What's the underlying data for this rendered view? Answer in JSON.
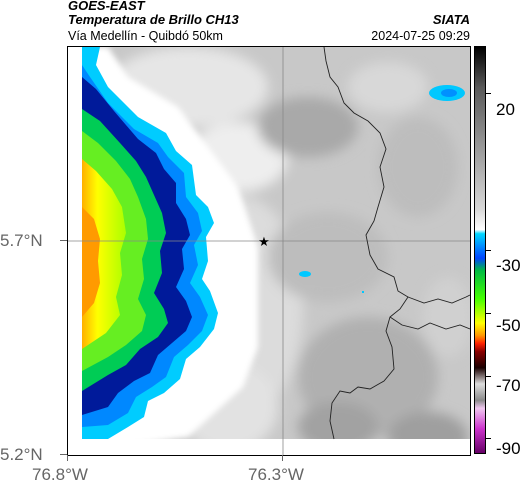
{
  "header": {
    "satellite": "GOES-EAST",
    "product": "Temperatura de Brillo CH13",
    "route": "Vía Medellín - Quibdó 50km",
    "agency": "SIATA",
    "datetime": "2024-07-25 09:29"
  },
  "axes": {
    "lat_labels": [
      "5.7°N",
      "5.2°N"
    ],
    "lon_labels": [
      "76.8°W",
      "76.3°W"
    ]
  },
  "colorbar": {
    "tick_labels": [
      "20",
      "-30",
      "-50",
      "-70",
      "-90"
    ],
    "tick_values": [
      20,
      -30,
      -50,
      -70,
      -90
    ],
    "range": [
      -95,
      35
    ]
  },
  "marker": {
    "icon": "star-icon"
  }
}
